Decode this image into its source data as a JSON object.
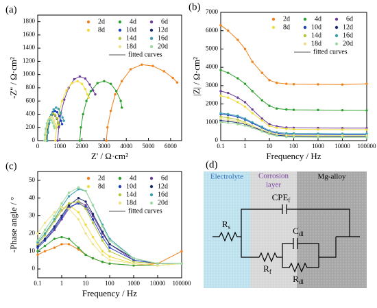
{
  "chart_data": [
    {
      "type": "scatter",
      "panel": "(a)",
      "xlabel": "Z' / Ω·cm²",
      "ylabel": "-Z'' / Ω·cm²",
      "xlim": [
        0,
        6500
      ],
      "xticks": [
        0,
        1000,
        2000,
        3000,
        4000,
        5000,
        6000
      ],
      "ylim": [
        0,
        1900
      ],
      "yticks": [
        0,
        200,
        400,
        600,
        800,
        1000,
        1200,
        1400,
        1600,
        1800
      ],
      "legend": "upper right",
      "fit_legend": "fitted curves",
      "series": [
        {
          "name": "2d",
          "color": "#f07f17",
          "x": [
            3100,
            3150,
            3300,
            3500,
            3800,
            4200,
            4700,
            5200,
            5700,
            6100,
            6300
          ],
          "values": [
            0,
            200,
            450,
            700,
            900,
            1080,
            1150,
            1130,
            1050,
            950,
            880
          ]
        },
        {
          "name": "4d",
          "color": "#2ca02c",
          "x": [
            1900,
            1950,
            2050,
            2200,
            2400,
            2700,
            3000,
            3300,
            3550,
            3750,
            3800
          ],
          "values": [
            0,
            200,
            400,
            600,
            750,
            870,
            900,
            860,
            750,
            600,
            500
          ]
        },
        {
          "name": "6d",
          "color": "#6a3d9a",
          "x": [
            900,
            950,
            1050,
            1200,
            1400,
            1650,
            1900,
            2150,
            2350,
            2500,
            2600
          ],
          "values": [
            0,
            200,
            420,
            620,
            800,
            930,
            970,
            940,
            850,
            760,
            700
          ]
        },
        {
          "name": "8d",
          "color": "#f2dc3c",
          "x": [
            800,
            850,
            950,
            1100,
            1300,
            1550,
            1800,
            2000,
            2150,
            2250,
            2300
          ],
          "values": [
            0,
            200,
            400,
            600,
            760,
            870,
            900,
            860,
            780,
            700,
            650
          ]
        },
        {
          "name": "10d",
          "color": "#1f3fbf",
          "x": [
            420,
            450,
            500,
            580,
            680,
            780,
            880,
            980,
            1050,
            1100
          ],
          "values": [
            0,
            120,
            250,
            360,
            430,
            450,
            430,
            370,
            300,
            250
          ]
        },
        {
          "name": "12d",
          "color": "#1a2a6c",
          "x": [
            400,
            420,
            470,
            540,
            620,
            700,
            790,
            870,
            930,
            970
          ],
          "values": [
            0,
            110,
            220,
            320,
            380,
            400,
            380,
            330,
            270,
            230
          ]
        },
        {
          "name": "14d",
          "color": "#b5c43a",
          "x": [
            380,
            400,
            450,
            520,
            600,
            690,
            780,
            860,
            920,
            960
          ],
          "values": [
            0,
            110,
            230,
            330,
            390,
            410,
            390,
            340,
            280,
            240
          ]
        },
        {
          "name": "16d",
          "color": "#3a9fb0",
          "x": [
            430,
            460,
            520,
            610,
            720,
            830,
            940,
            1040,
            1120,
            1180
          ],
          "values": [
            0,
            130,
            270,
            390,
            470,
            500,
            480,
            420,
            350,
            300
          ]
        },
        {
          "name": "18d",
          "color": "#ede28a",
          "x": [
            350,
            370,
            410,
            470,
            540,
            610,
            680,
            740,
            790,
            820
          ],
          "values": [
            0,
            100,
            200,
            290,
            340,
            360,
            340,
            300,
            250,
            210
          ]
        },
        {
          "name": "20d",
          "color": "#9fd99f",
          "x": [
            300,
            320,
            360,
            410,
            480,
            550,
            620,
            680,
            730,
            760
          ],
          "values": [
            0,
            90,
            180,
            260,
            310,
            330,
            310,
            270,
            220,
            190
          ]
        }
      ]
    },
    {
      "type": "scatter",
      "panel": "(b)",
      "xlabel": "Frequency / Hz",
      "ylabel": "|Z| / Ω·cm²",
      "xscale": "log",
      "xlim": [
        0.1,
        100000
      ],
      "xticks": [
        0.1,
        1,
        10,
        100,
        1000,
        10000,
        100000
      ],
      "ylim": [
        0,
        7000
      ],
      "yticks": [
        0,
        1000,
        2000,
        3000,
        4000,
        5000,
        6000,
        7000
      ],
      "legend": "upper right",
      "fit_legend": "fitted curves",
      "x": [
        0.1,
        0.2,
        0.5,
        1,
        2,
        5,
        10,
        20,
        50,
        100,
        1000,
        10000,
        100000
      ],
      "series": [
        {
          "name": "2d",
          "color": "#f07f17",
          "values": [
            6300,
            6000,
            5500,
            5000,
            4300,
            3700,
            3300,
            3150,
            3100,
            3080,
            3070,
            3060,
            3100
          ]
        },
        {
          "name": "4d",
          "color": "#2ca02c",
          "values": [
            3850,
            3700,
            3400,
            3100,
            2700,
            2200,
            1900,
            1750,
            1700,
            1680,
            1670,
            1660,
            1650
          ]
        },
        {
          "name": "6d",
          "color": "#6a3d9a",
          "values": [
            2700,
            2600,
            2350,
            2100,
            1700,
            1200,
            900,
            780,
            720,
            700,
            690,
            680,
            680
          ]
        },
        {
          "name": "8d",
          "color": "#f2dc3c",
          "values": [
            2450,
            2350,
            2100,
            1850,
            1500,
            1100,
            800,
            700,
            640,
            620,
            610,
            600,
            600
          ]
        },
        {
          "name": "10d",
          "color": "#1f3fbf",
          "values": [
            1450,
            1400,
            1300,
            1150,
            950,
            700,
            500,
            400,
            350,
            340,
            330,
            320,
            320
          ]
        },
        {
          "name": "12d",
          "color": "#1a2a6c",
          "values": [
            1100,
            1050,
            980,
            900,
            750,
            550,
            400,
            300,
            250,
            240,
            230,
            225,
            225
          ]
        },
        {
          "name": "14d",
          "color": "#b5c43a",
          "values": [
            1300,
            1250,
            1150,
            1000,
            800,
            600,
            430,
            340,
            290,
            280,
            270,
            265,
            265
          ]
        },
        {
          "name": "16d",
          "color": "#3a9fb0",
          "values": [
            1500,
            1450,
            1350,
            1200,
            1000,
            750,
            550,
            450,
            400,
            390,
            380,
            375,
            375
          ]
        },
        {
          "name": "18d",
          "color": "#ede28a",
          "values": [
            1200,
            1150,
            1050,
            950,
            800,
            600,
            450,
            350,
            300,
            290,
            280,
            275,
            275
          ]
        },
        {
          "name": "20d",
          "color": "#9fd99f",
          "values": [
            1000,
            970,
            900,
            820,
            700,
            500,
            350,
            260,
            200,
            190,
            180,
            175,
            175
          ]
        }
      ]
    },
    {
      "type": "scatter",
      "panel": "(c)",
      "xlabel": "Frequency / Hz",
      "ylabel": "-Phase angle / °",
      "xscale": "log",
      "xlim": [
        0.1,
        100000
      ],
      "xticks": [
        0.1,
        1,
        10,
        100,
        1000,
        10000,
        100000
      ],
      "ylim": [
        -5,
        55
      ],
      "yticks": [
        0,
        10,
        20,
        30,
        40,
        50
      ],
      "legend": "upper right",
      "fit_legend": "fitted curves",
      "x": [
        0.1,
        0.2,
        0.5,
        1,
        2,
        5,
        10,
        20,
        50,
        100,
        1000,
        10000,
        100000
      ],
      "series": [
        {
          "name": "2d",
          "color": "#f07f17",
          "values": [
            8,
            10,
            12,
            14,
            14,
            11,
            8,
            6,
            4,
            3,
            2,
            3,
            10
          ]
        },
        {
          "name": "4d",
          "color": "#2ca02c",
          "values": [
            10,
            13,
            17,
            18,
            17,
            12,
            8,
            6,
            4,
            3,
            2,
            2,
            3
          ]
        },
        {
          "name": "6d",
          "color": "#6a3d9a",
          "values": [
            12,
            16,
            22,
            28,
            34,
            38,
            36,
            30,
            20,
            14,
            5,
            3,
            3
          ]
        },
        {
          "name": "8d",
          "color": "#f2dc3c",
          "values": [
            15,
            20,
            28,
            33,
            36,
            32,
            25,
            18,
            10,
            7,
            3,
            2,
            3
          ]
        },
        {
          "name": "10d",
          "color": "#1f3fbf",
          "values": [
            12,
            16,
            23,
            29,
            35,
            37,
            35,
            28,
            18,
            12,
            5,
            3,
            3
          ]
        },
        {
          "name": "12d",
          "color": "#1a2a6c",
          "values": [
            13,
            17,
            24,
            30,
            36,
            40,
            38,
            31,
            21,
            14,
            6,
            3,
            3
          ]
        },
        {
          "name": "14d",
          "color": "#b5c43a",
          "values": [
            14,
            19,
            27,
            33,
            37,
            38,
            34,
            26,
            16,
            10,
            4,
            3,
            3
          ]
        },
        {
          "name": "16d",
          "color": "#3a9fb0",
          "values": [
            15,
            20,
            28,
            35,
            41,
            45,
            44,
            36,
            25,
            17,
            6,
            3,
            3
          ]
        },
        {
          "name": "18d",
          "color": "#ede28a",
          "values": [
            20,
            26,
            32,
            35,
            34,
            28,
            20,
            14,
            8,
            5,
            3,
            2,
            3
          ]
        },
        {
          "name": "20d",
          "color": "#9fd99f",
          "values": [
            16,
            22,
            30,
            37,
            43,
            46,
            44,
            36,
            24,
            16,
            6,
            3,
            3
          ]
        }
      ]
    }
  ],
  "diagram": {
    "panel": "(d)",
    "electrolyte": "Electrolyte",
    "corrosion": "Corrosion",
    "layer": "layer",
    "alloy": "Mg-alloy",
    "cpe": "CPE",
    "cpe_sub": "f",
    "rs": "R",
    "rs_sub": "s",
    "cdl": "C",
    "cdl_sub": "dl",
    "rf": "R",
    "rf_sub": "f",
    "rdl": "R",
    "rdl_sub": "dl"
  }
}
